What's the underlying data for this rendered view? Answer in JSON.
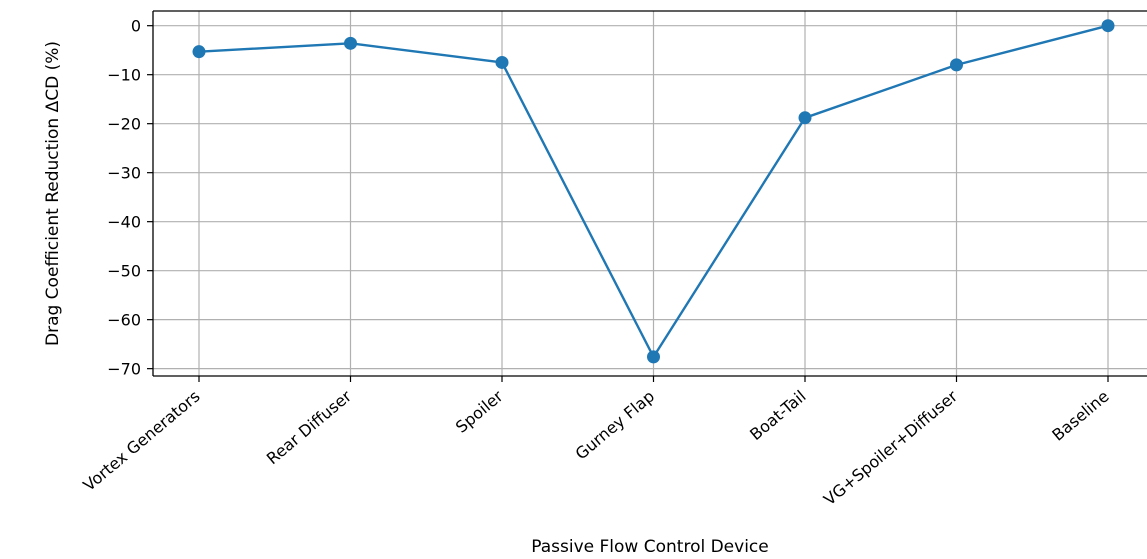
{
  "chart_data": {
    "type": "line",
    "title": "",
    "xlabel": "Passive Flow Control Device",
    "ylabel": "Drag Coefficient Reduction ΔCD (%)",
    "categories": [
      "Vortex Generators",
      "Rear Diffuser",
      "Spoiler",
      "Gurney Flap",
      "Boat-Tail",
      "VG+Spoiler+Diffuser",
      "Baseline"
    ],
    "series": [
      {
        "values": [
          -5.3,
          -3.6,
          -7.5,
          -67.6,
          -18.8,
          -8.0,
          0.0
        ]
      }
    ],
    "ylim": [
      -71.5,
      3.0
    ],
    "yticks": [
      0,
      -10,
      -20,
      -30,
      -40,
      -50,
      -60,
      -70
    ],
    "ytick_labels": [
      "0",
      "−10",
      "−20",
      "−30",
      "−40",
      "−50",
      "−60",
      "−70"
    ],
    "grid": true,
    "legend": "none",
    "colors": {
      "line": "#1f77b4",
      "grid": "#b0b0b0",
      "axis": "#000000"
    }
  }
}
